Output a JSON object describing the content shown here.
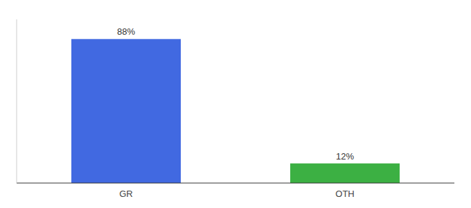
{
  "chart_data": {
    "type": "bar",
    "categories": [
      "GR",
      "OTH"
    ],
    "values": [
      88,
      12
    ],
    "value_labels": [
      "88%",
      "12%"
    ],
    "colors": [
      "#4169e1",
      "#3cb043"
    ],
    "ylim": [
      0,
      100
    ],
    "data_labels": true,
    "tick_labels": "x",
    "grid": false
  }
}
